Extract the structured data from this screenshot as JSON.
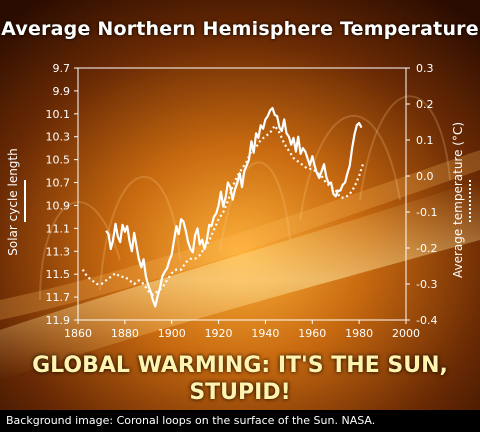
{
  "chart_title": "Average Northern Hemisphere Temperature",
  "headline_line1": "GLOBAL WARMING: IT'S THE SUN,",
  "headline_line2": "STUPID!",
  "caption": "Background image: Coronal loops on the surface of the Sun. NASA.",
  "chart_data": {
    "type": "line",
    "title": "Average Northern Hemisphere Temperature",
    "xlim": [
      1860,
      2000
    ],
    "x_ticks": [
      "1860",
      "1880",
      "1900",
      "1920",
      "1940",
      "1960",
      "1980",
      "2000"
    ],
    "ylabel_left": "Solar cycle length",
    "ylim_left": [
      9.7,
      11.9
    ],
    "left_ticks": [
      "9.7",
      "9.9",
      "10.1",
      "10.3",
      "10.5",
      "10.7",
      "10.9",
      "11.1",
      "11.3",
      "11.5",
      "11.7",
      "11.9"
    ],
    "ylabel_right": "Average temperature (°C)",
    "ylim_right": [
      -0.4,
      0.3
    ],
    "right_ticks": [
      "0.3",
      "0.2",
      "0.1",
      "0.0",
      "-0.1",
      "-0.2",
      "-0.3",
      "-0.4"
    ],
    "left_axis_inverted": true,
    "grid": false,
    "series": [
      {
        "name": "Solar cycle length",
        "style": "solid",
        "axis": "left",
        "x": [
          1872,
          1873,
          1874,
          1875,
          1876,
          1877,
          1878,
          1879,
          1880,
          1881,
          1882,
          1883,
          1884,
          1885,
          1886,
          1887,
          1888,
          1889,
          1890,
          1891,
          1892,
          1893,
          1894,
          1895,
          1896,
          1897,
          1898,
          1899,
          1900,
          1901,
          1902,
          1903,
          1904,
          1905,
          1906,
          1907,
          1908,
          1909,
          1910,
          1911,
          1912,
          1913,
          1914,
          1915,
          1916,
          1917,
          1918,
          1919,
          1920,
          1921,
          1922,
          1923,
          1924,
          1925,
          1926,
          1927,
          1928,
          1929,
          1930,
          1931,
          1932,
          1933,
          1934,
          1935,
          1936,
          1937,
          1938,
          1939,
          1940,
          1941,
          1942,
          1943,
          1944,
          1945,
          1946,
          1947,
          1948,
          1949,
          1950,
          1951,
          1952,
          1953,
          1954,
          1955,
          1956,
          1957,
          1958,
          1959,
          1960,
          1961,
          1962,
          1963,
          1964,
          1965,
          1966,
          1967,
          1968,
          1969,
          1970,
          1971,
          1972,
          1973,
          1974,
          1975,
          1976,
          1977,
          1978,
          1979,
          1980,
          1981
        ],
        "y": [
          11.12,
          11.15,
          11.28,
          11.2,
          11.06,
          11.17,
          11.22,
          11.07,
          11.13,
          11.08,
          11.21,
          11.3,
          11.14,
          11.26,
          11.37,
          11.44,
          11.37,
          11.52,
          11.6,
          11.65,
          11.73,
          11.78,
          11.69,
          11.62,
          11.52,
          11.48,
          11.45,
          11.38,
          11.33,
          11.2,
          11.08,
          11.15,
          11.02,
          11.04,
          11.12,
          11.22,
          11.28,
          11.31,
          11.16,
          11.1,
          11.24,
          11.2,
          11.28,
          11.2,
          11.07,
          11.08,
          11.0,
          10.97,
          10.9,
          10.78,
          10.91,
          10.83,
          10.7,
          10.74,
          10.85,
          10.76,
          10.7,
          10.62,
          10.74,
          10.6,
          10.55,
          10.5,
          10.34,
          10.44,
          10.27,
          10.31,
          10.2,
          10.23,
          10.15,
          10.12,
          10.07,
          10.05,
          10.11,
          10.12,
          10.22,
          10.25,
          10.15,
          10.27,
          10.3,
          10.37,
          10.31,
          10.43,
          10.3,
          10.45,
          10.4,
          10.43,
          10.49,
          10.55,
          10.47,
          10.55,
          10.62,
          10.66,
          10.6,
          10.54,
          10.65,
          10.71,
          10.7,
          10.8,
          10.82,
          10.77,
          10.77,
          10.72,
          10.7,
          10.62,
          10.55,
          10.4,
          10.28,
          10.2,
          10.18,
          10.22
        ]
      },
      {
        "name": "Average temperature",
        "style": "dotted",
        "axis": "right",
        "x": [
          1862,
          1864,
          1866,
          1868,
          1870,
          1872,
          1874,
          1876,
          1878,
          1880,
          1882,
          1884,
          1886,
          1888,
          1890,
          1892,
          1894,
          1896,
          1898,
          1900,
          1902,
          1904,
          1906,
          1908,
          1910,
          1912,
          1914,
          1916,
          1918,
          1920,
          1922,
          1924,
          1926,
          1928,
          1930,
          1932,
          1934,
          1936,
          1938,
          1940,
          1942,
          1944,
          1946,
          1948,
          1950,
          1952,
          1954,
          1956,
          1958,
          1960,
          1962,
          1964,
          1966,
          1968,
          1970,
          1972,
          1974,
          1976,
          1978,
          1980,
          1982
        ],
        "y": [
          -0.26,
          -0.28,
          -0.29,
          -0.3,
          -0.3,
          -0.29,
          -0.28,
          -0.27,
          -0.28,
          -0.28,
          -0.29,
          -0.3,
          -0.29,
          -0.3,
          -0.32,
          -0.33,
          -0.32,
          -0.31,
          -0.29,
          -0.27,
          -0.26,
          -0.26,
          -0.24,
          -0.23,
          -0.23,
          -0.22,
          -0.2,
          -0.18,
          -0.15,
          -0.12,
          -0.1,
          -0.07,
          -0.03,
          0.0,
          0.02,
          0.04,
          0.07,
          0.08,
          0.1,
          0.11,
          0.12,
          0.14,
          0.12,
          0.09,
          0.07,
          0.05,
          0.04,
          0.03,
          0.02,
          0.02,
          0.01,
          0.0,
          -0.02,
          -0.03,
          -0.04,
          -0.06,
          -0.06,
          -0.05,
          -0.03,
          0.0,
          0.04
        ]
      }
    ]
  }
}
